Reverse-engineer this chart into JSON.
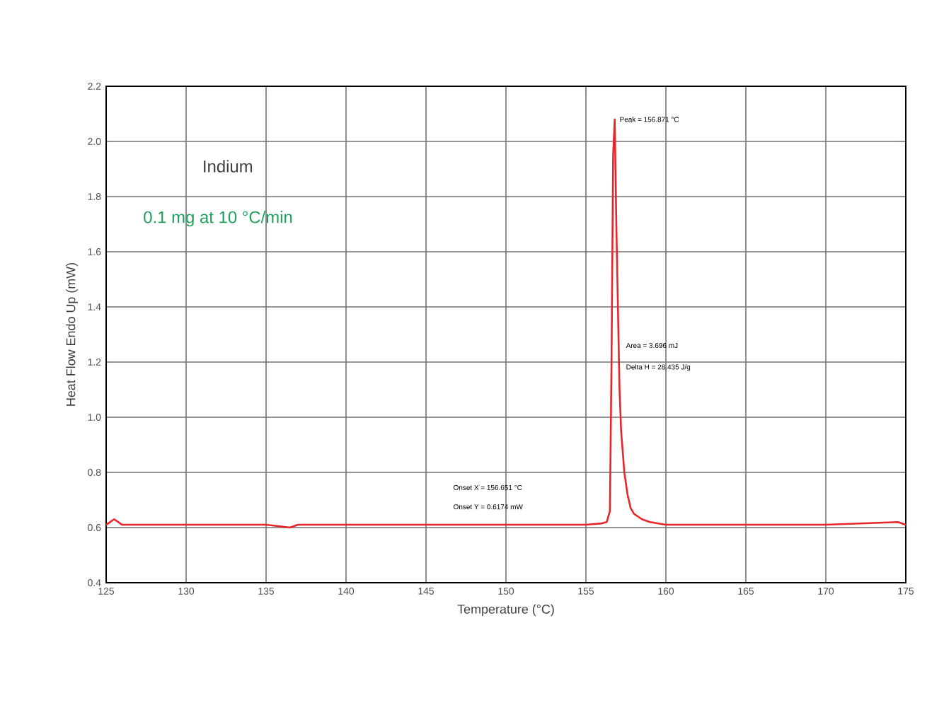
{
  "chart_data": {
    "type": "line",
    "title": "Indium",
    "subtitle": "0.1 mg at 10 °C/min",
    "xlabel": "Temperature (°C)",
    "ylabel": "Heat Flow Endo Up (mW)",
    "annotations": [
      "Peak = 156.871 °C",
      "Area = 3.696 mJ",
      "Delta H = 28.435 J/g",
      "Onset X = 156.651 °C",
      "Onset Y = 0.6174 mW"
    ],
    "series": [
      {
        "color": "#e8262a",
        "x": [
          125,
          125.5,
          126,
          127,
          130,
          135,
          136.5,
          137,
          140,
          145,
          150,
          153,
          155,
          156,
          156.3,
          156.5,
          156.6,
          156.7,
          156.8,
          156.9,
          157.0,
          157.1,
          157.2,
          157.4,
          157.6,
          157.8,
          158,
          158.5,
          159,
          160,
          162,
          165,
          170,
          174.5,
          175
        ],
        "values": [
          0.61,
          0.63,
          0.61,
          0.61,
          0.61,
          0.61,
          0.6,
          0.61,
          0.61,
          0.61,
          0.61,
          0.61,
          0.61,
          0.615,
          0.62,
          0.66,
          1.2,
          1.95,
          2.08,
          1.7,
          1.4,
          1.1,
          0.95,
          0.8,
          0.72,
          0.67,
          0.65,
          0.63,
          0.62,
          0.61,
          0.61,
          0.61,
          0.61,
          0.62,
          0.61
        ]
      }
    ],
    "xlim": [
      125,
      175
    ],
    "ylim": [
      0.4,
      2.2
    ],
    "xticks": [
      125,
      130,
      135,
      140,
      145,
      150,
      155,
      160,
      165,
      170,
      175
    ],
    "yticks": [
      0.4,
      0.6,
      0.8,
      {
        "value": 1,
        "label": "1.0"
      },
      1.2,
      1.4,
      1.6,
      1.8,
      {
        "value": 2,
        "label": "2.0"
      },
      2.2
    ],
    "grid": true,
    "marker": "none",
    "line_style": "solid"
  }
}
